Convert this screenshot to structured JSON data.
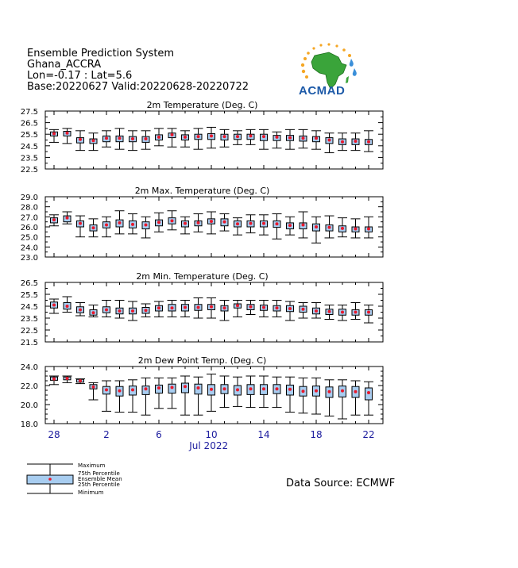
{
  "header": {
    "line1": "Ensemble Prediction System",
    "line2": "Ghana_ACCRA",
    "line3": "Lon=-0.17 : Lat=5.6",
    "line4": "Base:20220627 Valid:20220628-20220722"
  },
  "logo": {
    "text": "ACMAD"
  },
  "x_axis": {
    "tick_labels": [
      "28",
      "2",
      "6",
      "10",
      "14",
      "18",
      "22"
    ],
    "tick_days": [
      0,
      4,
      8,
      12,
      16,
      20,
      24
    ],
    "month_label": "Jul 2022"
  },
  "legend": {
    "maximum": "Maximum",
    "p75": "75th Percentile",
    "mean": "Ensemble Mean",
    "p25": "25th Percentile",
    "minimum": "Minimum"
  },
  "source": "Data Source: ECMWF",
  "colors": {
    "axis": "#000000",
    "box": "#a8cdf0",
    "mean": "#e8192c",
    "month": "#1c1c9e"
  },
  "chart_data": [
    {
      "type": "box",
      "title": "2m Temperature (Deg. C)",
      "ylim": [
        22.5,
        27.5
      ],
      "yticks": [
        22.5,
        23.5,
        24.5,
        25.5,
        26.5,
        27.5
      ],
      "ytick_labels": [
        "22.5",
        "23.5",
        "24.5",
        "25.5",
        "26.5",
        "27.5"
      ],
      "x": [
        0,
        1,
        2,
        3,
        4,
        5,
        6,
        7,
        8,
        9,
        10,
        11,
        12,
        13,
        14,
        15,
        16,
        17,
        18,
        19,
        20,
        21,
        22,
        23,
        24
      ],
      "max": [
        25.9,
        26.0,
        25.8,
        25.6,
        25.8,
        26.0,
        25.8,
        25.8,
        26.0,
        26.0,
        25.8,
        26.0,
        26.1,
        25.9,
        25.8,
        25.9,
        25.9,
        25.7,
        25.9,
        25.9,
        25.8,
        25.6,
        25.6,
        25.6,
        25.8
      ],
      "p75": [
        25.7,
        25.75,
        25.2,
        25.1,
        25.35,
        25.35,
        25.3,
        25.3,
        25.45,
        25.6,
        25.45,
        25.5,
        25.55,
        25.5,
        25.5,
        25.5,
        25.5,
        25.4,
        25.4,
        25.35,
        25.3,
        25.2,
        25.1,
        25.1,
        25.05
      ],
      "mean": [
        25.55,
        25.6,
        25.05,
        24.95,
        25.15,
        25.15,
        25.1,
        25.1,
        25.25,
        25.45,
        25.25,
        25.3,
        25.35,
        25.3,
        25.3,
        25.35,
        25.3,
        25.25,
        25.2,
        25.15,
        25.15,
        25.0,
        24.85,
        24.9,
        24.85
      ],
      "p25": [
        25.35,
        25.35,
        24.75,
        24.7,
        24.85,
        24.85,
        24.85,
        24.8,
        25.0,
        25.2,
        25.0,
        25.05,
        25.05,
        25.0,
        25.05,
        25.05,
        24.95,
        24.95,
        24.95,
        24.9,
        24.85,
        24.7,
        24.6,
        24.6,
        24.6
      ],
      "min": [
        24.8,
        24.7,
        24.1,
        24.1,
        24.4,
        24.2,
        24.1,
        24.2,
        24.5,
        24.4,
        24.4,
        24.2,
        24.3,
        24.4,
        24.6,
        24.6,
        24.2,
        24.3,
        24.2,
        24.3,
        24.2,
        23.9,
        24.1,
        24.1,
        24.0
      ]
    },
    {
      "type": "box",
      "title": "2m Max. Temperature (Deg. C)",
      "ylim": [
        23.0,
        29.0
      ],
      "yticks": [
        23,
        24,
        25,
        26,
        27,
        28,
        29
      ],
      "ytick_labels": [
        "23.0",
        "24.0",
        "25.0",
        "26.0",
        "27.0",
        "28.0",
        "29.0"
      ],
      "x": [
        0,
        1,
        2,
        3,
        4,
        5,
        6,
        7,
        8,
        9,
        10,
        11,
        12,
        13,
        14,
        15,
        16,
        17,
        18,
        19,
        20,
        21,
        22,
        23,
        24
      ],
      "max": [
        27.2,
        27.5,
        27.1,
        26.8,
        27.0,
        27.6,
        27.3,
        27.0,
        27.4,
        27.6,
        27.0,
        27.3,
        27.5,
        27.3,
        26.9,
        27.2,
        27.2,
        27.3,
        27.0,
        27.5,
        27.0,
        27.1,
        26.9,
        26.8,
        27.0
      ],
      "p75": [
        26.9,
        27.1,
        26.6,
        26.2,
        26.5,
        26.7,
        26.6,
        26.5,
        26.7,
        26.9,
        26.6,
        26.6,
        26.8,
        26.8,
        26.6,
        26.6,
        26.6,
        26.6,
        26.4,
        26.4,
        26.3,
        26.2,
        26.1,
        26.0,
        26.0
      ],
      "mean": [
        26.7,
        26.9,
        26.35,
        25.9,
        26.2,
        26.4,
        26.25,
        26.2,
        26.45,
        26.6,
        26.35,
        26.4,
        26.55,
        26.5,
        26.3,
        26.35,
        26.35,
        26.3,
        26.15,
        26.2,
        26.0,
        25.95,
        25.85,
        25.8,
        25.8
      ],
      "p25": [
        26.4,
        26.5,
        26.0,
        25.6,
        25.9,
        26.0,
        25.9,
        25.8,
        26.1,
        26.3,
        26.0,
        26.1,
        26.3,
        26.1,
        26.0,
        26.0,
        26.0,
        25.95,
        25.8,
        25.8,
        25.6,
        25.6,
        25.5,
        25.5,
        25.5
      ],
      "min": [
        26.1,
        26.3,
        25.0,
        25.0,
        25.0,
        25.3,
        25.3,
        24.9,
        25.5,
        25.7,
        25.3,
        25.5,
        25.3,
        25.6,
        25.2,
        25.4,
        25.2,
        24.8,
        25.2,
        24.9,
        24.4,
        24.9,
        25.0,
        24.9,
        24.9
      ]
    },
    {
      "type": "box",
      "title": "2m Min. Temperature (Deg. C)",
      "ylim": [
        21.5,
        26.5
      ],
      "yticks": [
        21.5,
        22.5,
        23.5,
        24.5,
        25.5,
        26.5
      ],
      "ytick_labels": [
        "21.5",
        "22.5",
        "23.5",
        "24.5",
        "25.5",
        "26.5"
      ],
      "x": [
        0,
        1,
        2,
        3,
        4,
        5,
        6,
        7,
        8,
        9,
        10,
        11,
        12,
        13,
        14,
        15,
        16,
        17,
        18,
        19,
        20,
        21,
        22,
        23,
        24
      ],
      "max": [
        25.1,
        25.3,
        24.8,
        24.6,
        25.0,
        25.0,
        24.9,
        24.7,
        24.9,
        25.0,
        25.0,
        25.2,
        25.2,
        25.0,
        25.0,
        25.0,
        25.0,
        25.0,
        24.9,
        24.8,
        24.8,
        24.6,
        24.6,
        24.8,
        24.6
      ],
      "p75": [
        24.85,
        24.8,
        24.45,
        24.2,
        24.45,
        24.35,
        24.35,
        24.4,
        24.55,
        24.65,
        24.65,
        24.65,
        24.65,
        24.55,
        24.7,
        24.65,
        24.6,
        24.55,
        24.55,
        24.5,
        24.35,
        24.25,
        24.25,
        24.2,
        24.2
      ],
      "mean": [
        24.6,
        24.5,
        24.2,
        23.95,
        24.2,
        24.1,
        24.1,
        24.15,
        24.35,
        24.35,
        24.4,
        24.4,
        24.45,
        24.35,
        24.55,
        24.45,
        24.4,
        24.35,
        24.3,
        24.25,
        24.1,
        24.05,
        24.0,
        24.0,
        24.0
      ],
      "p25": [
        24.35,
        24.25,
        23.95,
        23.75,
        23.95,
        23.85,
        23.85,
        23.9,
        24.1,
        24.1,
        24.1,
        24.15,
        24.2,
        24.1,
        24.35,
        24.2,
        24.15,
        24.1,
        24.05,
        24.0,
        23.85,
        23.8,
        23.75,
        23.75,
        23.75
      ],
      "min": [
        23.9,
        24.0,
        23.7,
        23.6,
        23.6,
        23.5,
        23.3,
        23.6,
        23.6,
        23.6,
        23.6,
        23.5,
        23.5,
        23.3,
        23.6,
        23.8,
        23.6,
        23.6,
        23.3,
        23.5,
        23.5,
        23.4,
        23.3,
        23.4,
        23.1
      ]
    },
    {
      "type": "box",
      "title": "2m Dew Point Temp. (Deg. C)",
      "ylim": [
        18.0,
        24.0
      ],
      "yticks": [
        18,
        20,
        22,
        24
      ],
      "ytick_labels": [
        "18.0",
        "20.0",
        "22.0",
        "24.0"
      ],
      "x": [
        0,
        1,
        2,
        3,
        4,
        5,
        6,
        7,
        8,
        9,
        10,
        11,
        12,
        13,
        14,
        15,
        16,
        17,
        18,
        19,
        20,
        21,
        22,
        23,
        24
      ],
      "max": [
        23.0,
        23.0,
        22.7,
        22.3,
        22.5,
        22.5,
        22.6,
        22.8,
        22.8,
        22.8,
        23.0,
        22.9,
        23.2,
        23.0,
        22.9,
        23.0,
        23.0,
        22.9,
        22.9,
        22.8,
        22.8,
        22.6,
        22.6,
        22.5,
        22.4
      ],
      "p75": [
        22.9,
        22.9,
        22.65,
        22.1,
        21.9,
        21.9,
        21.95,
        21.95,
        22.05,
        22.15,
        22.25,
        22.15,
        22.1,
        22.1,
        22.0,
        22.1,
        22.1,
        22.1,
        22.05,
        21.9,
        21.95,
        21.85,
        21.95,
        21.9,
        21.75
      ],
      "mean": [
        22.7,
        22.75,
        22.5,
        21.85,
        21.55,
        21.45,
        21.55,
        21.65,
        21.75,
        21.8,
        21.9,
        21.75,
        21.6,
        21.65,
        21.55,
        21.65,
        21.65,
        21.65,
        21.6,
        21.4,
        21.45,
        21.35,
        21.45,
        21.35,
        21.25
      ],
      "p25": [
        22.55,
        22.6,
        22.35,
        21.65,
        21.1,
        20.9,
        21.0,
        21.05,
        21.2,
        21.2,
        21.25,
        21.1,
        21.0,
        21.15,
        21.0,
        21.05,
        21.05,
        21.15,
        21.0,
        20.9,
        20.9,
        20.75,
        20.8,
        20.75,
        20.5
      ],
      "min": [
        22.1,
        22.3,
        22.2,
        20.5,
        19.3,
        19.2,
        19.2,
        18.9,
        19.6,
        19.6,
        18.9,
        18.9,
        19.3,
        19.7,
        19.8,
        19.7,
        19.7,
        19.7,
        19.2,
        19.1,
        19.0,
        18.8,
        18.5,
        18.9,
        18.9
      ]
    }
  ]
}
